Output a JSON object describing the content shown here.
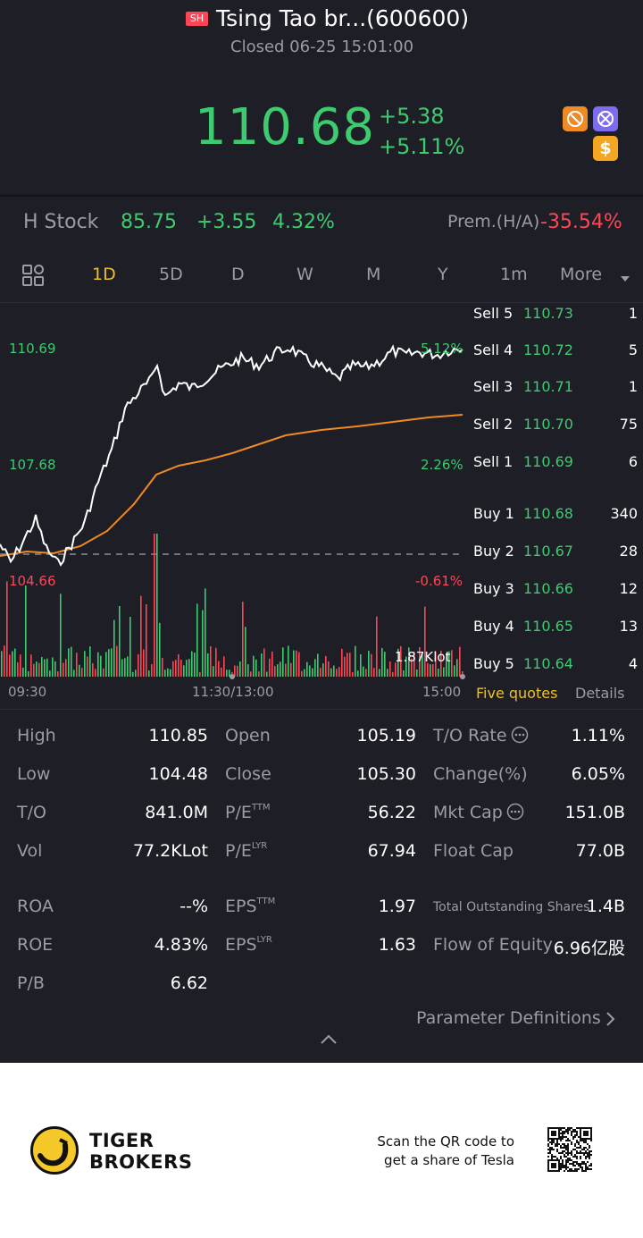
{
  "header": {
    "exchange_badge": "SH",
    "title": "Tsing Tao br...(600600)",
    "status": "Closed 06-25 15:01:00",
    "price": "110.68",
    "change": "+5.38",
    "change_pct": "+5.11%",
    "icons": [
      "no-margin-icon",
      "no-short-icon",
      "dollar-icon"
    ]
  },
  "h_stock": {
    "label": "H Stock",
    "price": "85.75",
    "change": "+3.55",
    "change_pct": "4.32%",
    "premium_label": "Prem.(H/A)",
    "premium_value": "-35.54%"
  },
  "tabs": {
    "items": [
      "1D",
      "5D",
      "D",
      "W",
      "M",
      "Y",
      "1m",
      "More"
    ],
    "active": "1D"
  },
  "chart": {
    "left_labels": [
      "110.69",
      "107.68",
      "104.66"
    ],
    "right_labels": [
      "5.12%",
      "2.26%",
      "-0.61%"
    ],
    "volume_label": "1.87Klot",
    "time_labels": [
      "09:30",
      "11:30/13:00",
      "15:00"
    ]
  },
  "quotes": {
    "sell": [
      {
        "label": "Sell 5",
        "price": "110.73",
        "qty": "1"
      },
      {
        "label": "Sell 4",
        "price": "110.72",
        "qty": "5"
      },
      {
        "label": "Sell 3",
        "price": "110.71",
        "qty": "1"
      },
      {
        "label": "Sell 2",
        "price": "110.70",
        "qty": "75"
      },
      {
        "label": "Sell 1",
        "price": "110.69",
        "qty": "6"
      }
    ],
    "buy": [
      {
        "label": "Buy 1",
        "price": "110.68",
        "qty": "340"
      },
      {
        "label": "Buy 2",
        "price": "110.67",
        "qty": "28"
      },
      {
        "label": "Buy 3",
        "price": "110.66",
        "qty": "12"
      },
      {
        "label": "Buy 4",
        "price": "110.65",
        "qty": "13"
      },
      {
        "label": "Buy 5",
        "price": "110.64",
        "qty": "4"
      }
    ],
    "tab_five": "Five quotes",
    "tab_details": "Details"
  },
  "stats": {
    "rows": [
      [
        {
          "label": "High",
          "value": "110.85"
        },
        {
          "label": "Open",
          "value": "105.19"
        },
        {
          "label": "T/O Rate",
          "value": "1.11%"
        }
      ],
      [
        {
          "label": "Low",
          "value": "104.48"
        },
        {
          "label": "Close",
          "value": "105.30"
        },
        {
          "label": "Change(%)",
          "value": "6.05%"
        }
      ],
      [
        {
          "label": "T/O",
          "value": "841.0M"
        },
        {
          "label": "P/E",
          "sup": "TTM",
          "value": "56.22"
        },
        {
          "label": "Mkt Cap",
          "value": "151.0B"
        }
      ],
      [
        {
          "label": "Vol",
          "value": "77.2KLot"
        },
        {
          "label": "P/E",
          "sup": "LYR",
          "value": "67.94"
        },
        {
          "label": "Float Cap",
          "value": "77.0B"
        }
      ],
      [
        {
          "label": "ROA",
          "value": "--%"
        },
        {
          "label": "EPS",
          "sup": "TTM",
          "value": "1.97"
        },
        {
          "label": "Total Outstanding Shares",
          "value": "1.4B"
        }
      ],
      [
        {
          "label": "ROE",
          "value": "4.83%"
        },
        {
          "label": "EPS",
          "sup": "LYR",
          "value": "1.63"
        },
        {
          "label": "Flow of Equity",
          "value": "6.96亿股"
        }
      ],
      [
        {
          "label": "P/B",
          "value": "6.62"
        }
      ]
    ],
    "param_link": "Parameter Definitions"
  },
  "footer": {
    "brand_line1": "TIGER",
    "brand_line2": "BROKERS",
    "scan_line1": "Scan the QR code to",
    "scan_line2": "get a share of Tesla"
  },
  "colors": {
    "background": "#1d1e26",
    "up": "#3ecb6f",
    "down": "#ff4656",
    "accent": "#f0c020",
    "avg_line": "#f08a24"
  }
}
